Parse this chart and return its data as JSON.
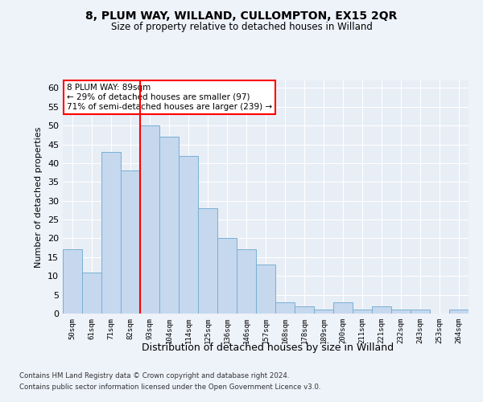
{
  "title1": "8, PLUM WAY, WILLAND, CULLOMPTON, EX15 2QR",
  "title2": "Size of property relative to detached houses in Willand",
  "xlabel": "Distribution of detached houses by size in Willand",
  "ylabel": "Number of detached properties",
  "categories": [
    "50sqm",
    "61sqm",
    "71sqm",
    "82sqm",
    "93sqm",
    "104sqm",
    "114sqm",
    "125sqm",
    "136sqm",
    "146sqm",
    "157sqm",
    "168sqm",
    "178sqm",
    "189sqm",
    "200sqm",
    "211sqm",
    "221sqm",
    "232sqm",
    "243sqm",
    "253sqm",
    "264sqm"
  ],
  "values": [
    17,
    11,
    43,
    38,
    50,
    47,
    42,
    28,
    20,
    17,
    13,
    3,
    2,
    1,
    3,
    1,
    2,
    1,
    1,
    0,
    1
  ],
  "bar_color": "#c5d8ee",
  "bar_edge_color": "#7aafd4",
  "ylim": [
    0,
    62
  ],
  "yticks": [
    0,
    5,
    10,
    15,
    20,
    25,
    30,
    35,
    40,
    45,
    50,
    55,
    60
  ],
  "annotation_box_text": "8 PLUM WAY: 89sqm\n← 29% of detached houses are smaller (97)\n71% of semi-detached houses are larger (239) →",
  "red_line_x": 3.5,
  "footer1": "Contains HM Land Registry data © Crown copyright and database right 2024.",
  "footer2": "Contains public sector information licensed under the Open Government Licence v3.0.",
  "bg_color": "#eef2f9",
  "plot_bg_color": "#e8eef6"
}
